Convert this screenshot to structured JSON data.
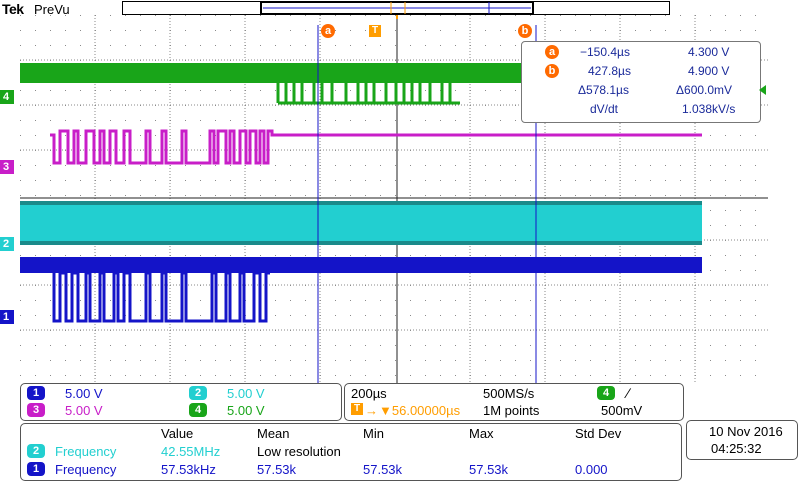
{
  "header": {
    "brand": "Tek",
    "mode": "PreVu"
  },
  "cursors": {
    "a_label": "a",
    "b_label": "b",
    "trigger_label": "T"
  },
  "readout": {
    "row_a": {
      "label": "a",
      "time": "−150.4µs",
      "volt": "4.300 V"
    },
    "row_b": {
      "label": "b",
      "time": "427.8µs",
      "volt": "4.900 V"
    },
    "delta": {
      "time": "Δ578.1µs",
      "volt": "Δ600.0mV"
    },
    "dvdt": {
      "label": "dV/dt",
      "value": "1.038kV/s"
    }
  },
  "channel_tags": {
    "ch4": "4",
    "ch3": "3",
    "ch2": "2",
    "ch1": "1"
  },
  "scale_panel": {
    "ch1": {
      "num": "1",
      "value": "5.00 V"
    },
    "ch2": {
      "num": "2",
      "value": "5.00 V"
    },
    "ch3": {
      "num": "3",
      "value": "5.00 V"
    },
    "ch4": {
      "num": "4",
      "value": "5.00 V"
    }
  },
  "timebase": {
    "timescale": "200µs",
    "sample_rate": "500MS/s",
    "trigger_channel": "4",
    "trigger_slope": "∕",
    "trigger_position": "▼56.00000µs",
    "record_length": "1M points",
    "trigger_level": "500mV"
  },
  "measurements": {
    "headers": {
      "value": "Value",
      "mean": "Mean",
      "min": "Min",
      "max": "Max",
      "stddev": "Std Dev"
    },
    "rows": [
      {
        "ch": "2",
        "name": "Frequency",
        "value": "42.55MHz",
        "mean": "Low resolution",
        "min": "",
        "max": "",
        "stddev": ""
      },
      {
        "ch": "1",
        "name": "Frequency",
        "value": "57.53kHz",
        "mean": "57.53k",
        "min": "57.53k",
        "max": "57.53k",
        "stddev": "0.000"
      }
    ]
  },
  "datetime": {
    "date": "10 Nov  2016",
    "time": "04:25:32"
  },
  "colors": {
    "ch1": "#1414c8",
    "ch2": "#22cfd0",
    "ch3": "#c81ec8",
    "ch4": "#19a519",
    "cursor": "#ff6a00",
    "trigger": "#ff9d00"
  }
}
